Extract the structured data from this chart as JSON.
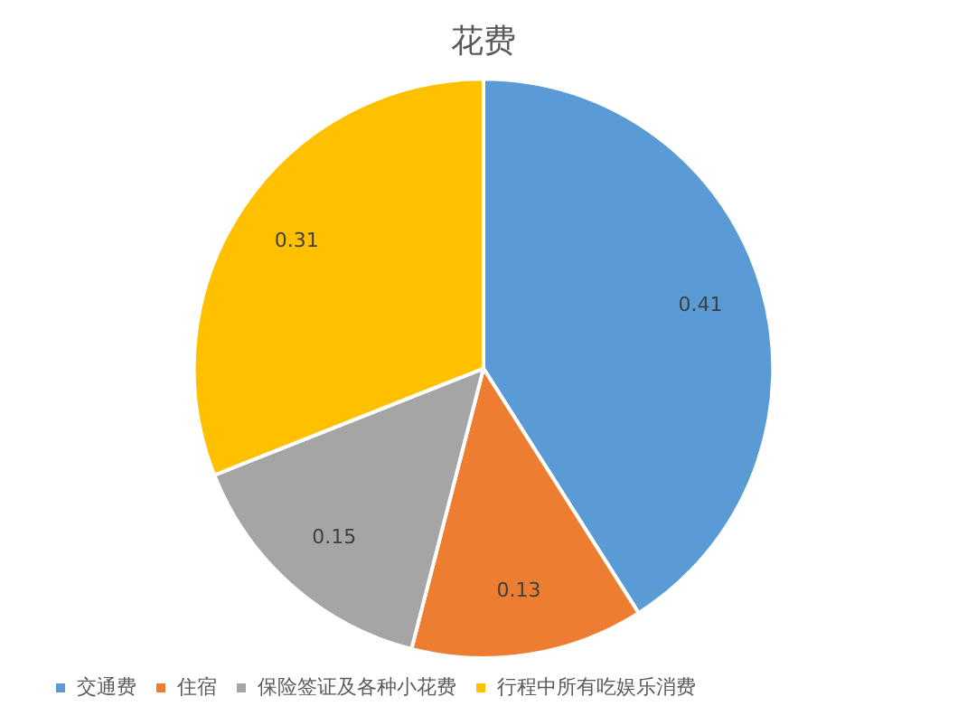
{
  "chart_data": {
    "type": "pie",
    "title": "花费",
    "categories": [
      "交通费",
      "住宿",
      "保险签证及各种小花费",
      "行程中所有吃娱乐消费"
    ],
    "values": [
      0.41,
      0.13,
      0.15,
      0.31
    ],
    "colors": [
      "#5b9bd5",
      "#ed7d31",
      "#a5a5a5",
      "#ffc000"
    ],
    "data_labels": true,
    "legend": "bottom"
  }
}
